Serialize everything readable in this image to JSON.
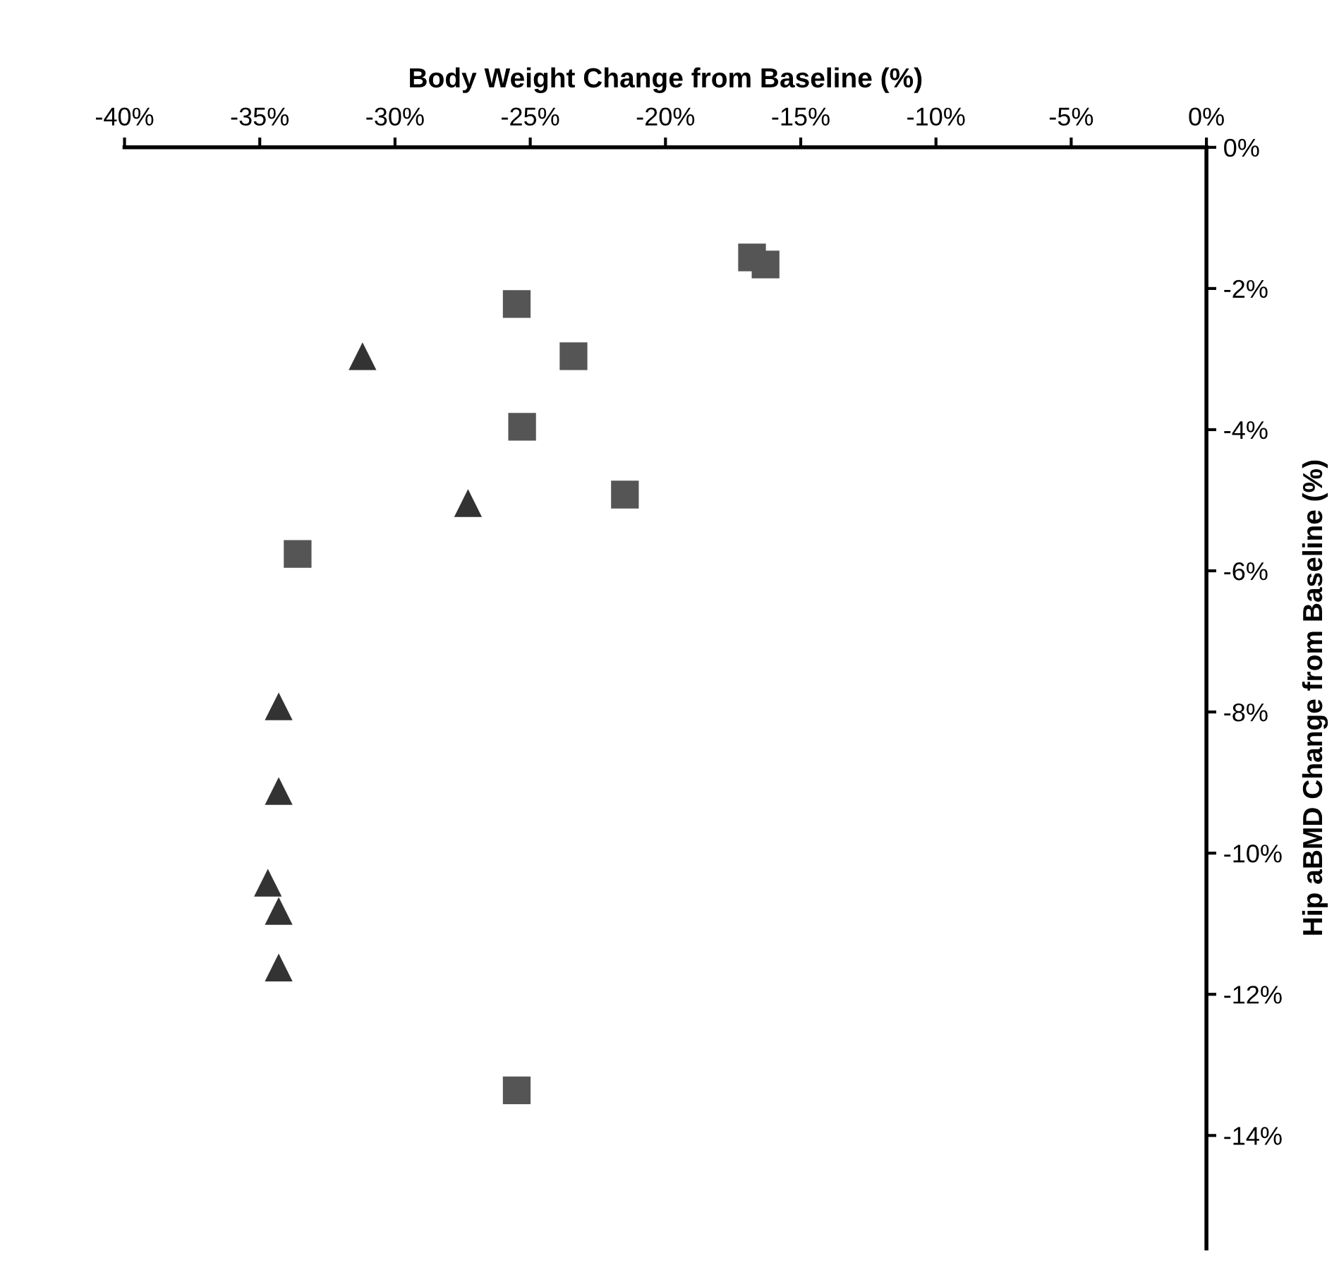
{
  "chart_data": {
    "type": "scatter",
    "xlabel": "Body Weight Change from Baseline (%)",
    "ylabel": "Hip aBMD Change from Baseline (%)",
    "xlim": [
      -40,
      0
    ],
    "ylim": [
      -15.6,
      0
    ],
    "xticks": [
      {
        "value": -40,
        "label": "-40%"
      },
      {
        "value": -35,
        "label": "-35%"
      },
      {
        "value": -30,
        "label": "-30%"
      },
      {
        "value": -25,
        "label": "-25%"
      },
      {
        "value": -20,
        "label": "-20%"
      },
      {
        "value": -15,
        "label": "-15%"
      },
      {
        "value": -10,
        "label": "-10%"
      },
      {
        "value": -5,
        "label": "-5%"
      },
      {
        "value": 0,
        "label": "0%"
      }
    ],
    "yticks": [
      {
        "value": 0,
        "label": "0%"
      },
      {
        "value": -2,
        "label": "-2%"
      },
      {
        "value": -4,
        "label": "-4%"
      },
      {
        "value": -6,
        "label": "-6%"
      },
      {
        "value": -8,
        "label": "-8%"
      },
      {
        "value": -10,
        "label": "-10%"
      },
      {
        "value": -12,
        "label": "-12%"
      },
      {
        "value": -14,
        "label": "-14%"
      }
    ],
    "grid": false,
    "legend": false,
    "series": [
      {
        "marker": "square",
        "color": "#555555",
        "x": [
          -16.8,
          -16.3,
          -25.5,
          -23.4,
          -25.3,
          -21.5,
          -33.6,
          -25.5
        ],
        "values": [
          -1.56,
          -1.66,
          -2.22,
          -2.96,
          -3.96,
          -4.92,
          -5.76,
          -13.36
        ]
      },
      {
        "marker": "triangle",
        "color": "#333333",
        "x": [
          -31.2,
          -27.3,
          -34.3,
          -34.3,
          -34.7,
          -34.3,
          -34.3
        ],
        "values": [
          -2.96,
          -5.04,
          -7.92,
          -9.12,
          -10.42,
          -10.82,
          -11.62
        ]
      }
    ]
  }
}
